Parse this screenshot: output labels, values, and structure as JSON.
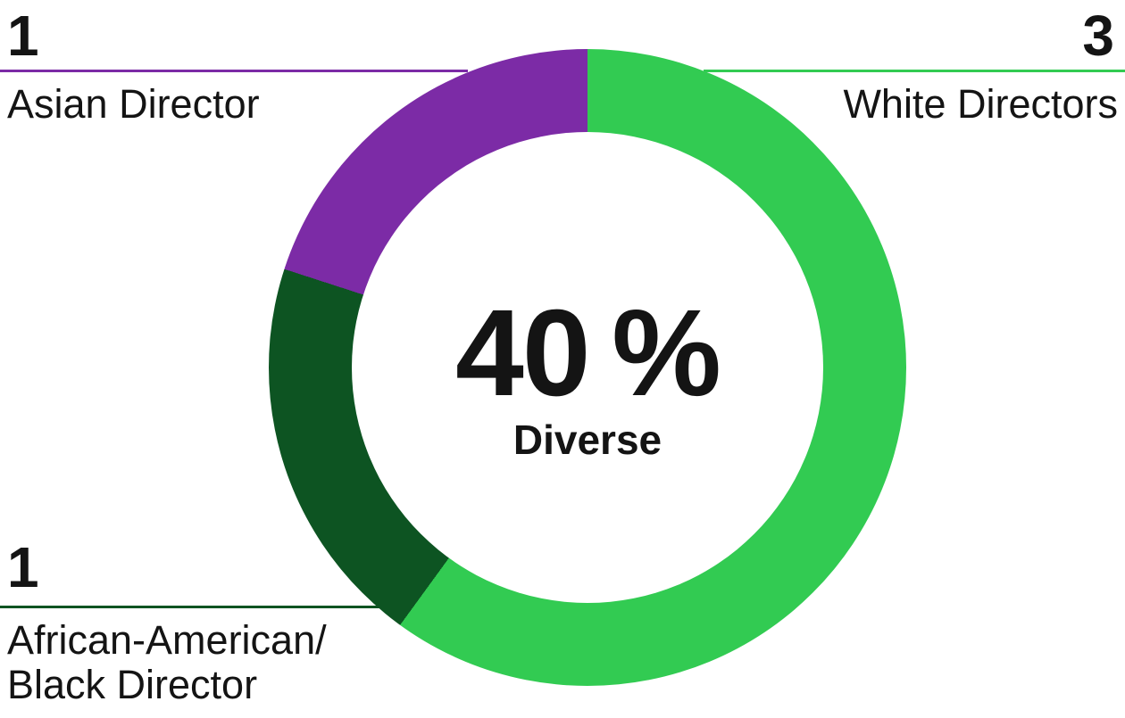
{
  "chart_data": {
    "type": "pie",
    "subtype": "donut",
    "title": "",
    "total_directors": 5,
    "start_angle_deg": 0,
    "direction": "clockwise",
    "legend_position": "callouts",
    "segments": [
      {
        "label": "White Directors",
        "value": 3,
        "color": "#32CB52"
      },
      {
        "label": "African-American/Black Director",
        "value": 1,
        "color": "#0D5422"
      },
      {
        "label": "Asian Director",
        "value": 1,
        "color": "#7C2BA6"
      }
    ],
    "center_value": "40 %",
    "center_label": "Diverse",
    "diverse_percent": 40
  },
  "callouts": {
    "top_left": {
      "count": "1",
      "label": "Asian Director",
      "color": "#7C2BA6"
    },
    "top_right": {
      "count": "3",
      "label": "White Directors",
      "color": "#32CB52"
    },
    "bottom_left": {
      "count": "1",
      "label": "African-American/\nBlack Director",
      "color": "#0D5422"
    }
  },
  "colors": {
    "background": "#FFFFFF",
    "text": "#141414"
  }
}
